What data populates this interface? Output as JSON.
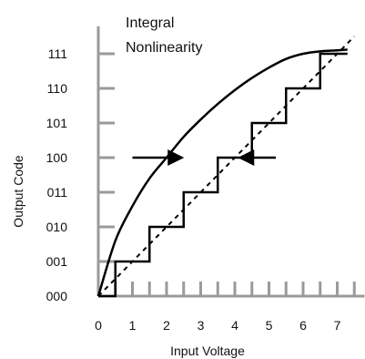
{
  "chart_data": {
    "type": "line",
    "title": "",
    "xlabel": "Input Voltage",
    "ylabel": "Output Code",
    "x_ticks": [
      "0",
      "1",
      "2",
      "3",
      "4",
      "5",
      "6",
      "7"
    ],
    "y_ticks": [
      "000",
      "001",
      "010",
      "011",
      "100",
      "101",
      "110",
      "111"
    ],
    "xlim": [
      0,
      7.8
    ],
    "ylim": [
      0,
      7.4
    ],
    "grid": false,
    "series": [
      {
        "style": "step",
        "x": [
          0,
          0.5,
          0.5,
          1.5,
          1.5,
          2.5,
          2.5,
          3.5,
          3.5,
          4.5,
          4.5,
          5.5,
          5.5,
          6.5,
          6.5,
          7.3
        ],
        "y": [
          0,
          0,
          1,
          1,
          2,
          2,
          3,
          3,
          4,
          4,
          5,
          5,
          6,
          6,
          7,
          7
        ]
      },
      {
        "style": "dashed",
        "x": [
          0,
          7.5
        ],
        "y": [
          0,
          7.5
        ]
      },
      {
        "style": "curve",
        "x": [
          0,
          0.5,
          1,
          1.5,
          2,
          2.5,
          3,
          3.5,
          4,
          4.5,
          5,
          5.5,
          6,
          6.5,
          7,
          7.3
        ],
        "y": [
          0,
          1.6,
          2.6,
          3.4,
          4.0,
          4.6,
          5.1,
          5.55,
          5.95,
          6.3,
          6.6,
          6.85,
          7.0,
          7.07,
          7.1,
          7.12
        ]
      }
    ],
    "annotations": [
      {
        "text": "Integral",
        "kind": "label"
      },
      {
        "text": "Nonlinearity",
        "kind": "label"
      }
    ],
    "arrows": [
      {
        "from": [
          1,
          4
        ],
        "to": [
          2.3,
          4
        ],
        "direction": "right"
      },
      {
        "from": [
          5.2,
          4
        ],
        "to": [
          4.3,
          4
        ],
        "direction": "left"
      }
    ]
  }
}
